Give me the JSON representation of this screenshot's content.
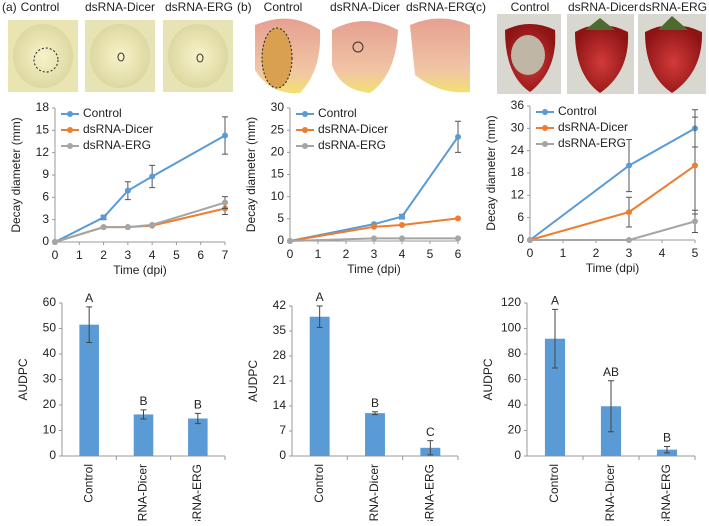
{
  "panels": [
    {
      "label": "(a)",
      "photo_labels": [
        "Control",
        "dsRNA-Dicer",
        "dsRNA-ERG"
      ]
    },
    {
      "label": "(b)",
      "photo_labels": [
        "Control",
        "dsRNA-Dicer",
        "dsRNA-ERG"
      ]
    },
    {
      "label": "(c)",
      "photo_labels": [
        "Control",
        "dsRNA-Dicer",
        "dsRNA-ERG"
      ]
    }
  ],
  "chart_data": [
    {
      "type": "line",
      "x_label": "Time (dpi)",
      "y_label": "Decay diameter (mm)",
      "x": [
        0,
        2,
        3,
        4,
        7
      ],
      "xlim": [
        0,
        7
      ],
      "xticks": [
        0,
        1,
        2,
        3,
        4,
        5,
        6,
        7
      ],
      "ylim": [
        0,
        18
      ],
      "yticks": [
        0,
        3,
        6,
        9,
        12,
        15,
        18
      ],
      "series": [
        {
          "name": "Control",
          "color": "#5b9bd5",
          "values": [
            0,
            3.3,
            6.9,
            8.8,
            14.3
          ],
          "errors": [
            null,
            0.3,
            1.2,
            1.5,
            2.5
          ]
        },
        {
          "name": "dsRNA-Dicer",
          "color": "#ed7d31",
          "values": [
            0,
            2,
            2,
            2.2,
            4.5
          ],
          "errors": [
            null,
            null,
            null,
            null,
            0.8
          ]
        },
        {
          "name": "dsRNA-ERG",
          "color": "#a5a5a5",
          "values": [
            0,
            2,
            2,
            2.3,
            5.3
          ],
          "errors": [
            null,
            null,
            null,
            null,
            0.8
          ]
        }
      ]
    },
    {
      "type": "line",
      "x_label": "Time (dpi)",
      "y_label": "Decay diameter (mm)",
      "x": [
        0,
        3,
        4,
        6
      ],
      "xlim": [
        0,
        6
      ],
      "xticks": [
        0,
        1,
        2,
        3,
        4,
        5,
        6
      ],
      "ylim": [
        0,
        30
      ],
      "yticks": [
        0,
        5,
        10,
        15,
        20,
        25,
        30
      ],
      "series": [
        {
          "name": "Control",
          "color": "#5b9bd5",
          "values": [
            0,
            3.8,
            5.5,
            23.5
          ],
          "errors": [
            null,
            null,
            0.5,
            3.5
          ]
        },
        {
          "name": "dsRNA-Dicer",
          "color": "#ed7d31",
          "values": [
            0,
            3.2,
            3.6,
            5.1
          ],
          "errors": [
            null,
            null,
            null,
            null
          ]
        },
        {
          "name": "dsRNA-ERG",
          "color": "#a5a5a5",
          "values": [
            0,
            0.6,
            0.6,
            0.6
          ],
          "errors": [
            null,
            null,
            null,
            null
          ]
        }
      ]
    },
    {
      "type": "line",
      "x_label": "Time (dpi)",
      "y_label": "Decay diameter (mm)",
      "x": [
        0,
        3,
        5
      ],
      "xlim": [
        0,
        5
      ],
      "xticks": [
        0,
        1,
        2,
        3,
        4,
        5
      ],
      "ylim": [
        0,
        36
      ],
      "yticks": [
        0,
        6,
        12,
        18,
        24,
        30,
        36
      ],
      "series": [
        {
          "name": "Control",
          "color": "#5b9bd5",
          "values": [
            0,
            20,
            30
          ],
          "errors": [
            null,
            7,
            5
          ]
        },
        {
          "name": "dsRNA-Dicer",
          "color": "#ed7d31",
          "values": [
            0,
            7.5,
            20
          ],
          "errors": [
            null,
            4,
            13
          ]
        },
        {
          "name": "dsRNA-ERG",
          "color": "#a5a5a5",
          "values": [
            0,
            0,
            5
          ],
          "errors": [
            null,
            null,
            3
          ]
        }
      ]
    },
    {
      "type": "bar",
      "y_label": "AUDPC",
      "categories": [
        "Control",
        "dsRNA-Dicer",
        "dsRNA-ERG"
      ],
      "values": [
        51.5,
        16.3,
        14.7
      ],
      "errors": [
        7,
        1.8,
        2
      ],
      "annotations": [
        "A",
        "B",
        "B"
      ],
      "color": "#5b9bd5",
      "ylim": [
        0,
        60
      ],
      "yticks": [
        0,
        10,
        20,
        30,
        40,
        50,
        60
      ]
    },
    {
      "type": "bar",
      "y_label": "AUDPC",
      "categories": [
        "Control",
        "dsRNA-Dicer",
        "dsRNA-ERG"
      ],
      "values": [
        39,
        12,
        2.3
      ],
      "errors": [
        3,
        0.4,
        2
      ],
      "annotations": [
        "A",
        "B",
        "C"
      ],
      "color": "#5b9bd5",
      "ylim": [
        0,
        42
      ],
      "yticks": [
        0,
        7,
        14,
        21,
        28,
        35,
        42
      ]
    },
    {
      "type": "bar",
      "y_label": "AUDPC",
      "categories": [
        "Control",
        "dsRNA-Dicer",
        "dsRNA-ERG"
      ],
      "values": [
        92,
        39,
        5
      ],
      "errors": [
        23,
        20,
        2.5
      ],
      "annotations": [
        "A",
        "AB",
        "B"
      ],
      "color": "#5b9bd5",
      "ylim": [
        0,
        120
      ],
      "yticks": [
        0,
        20,
        40,
        60,
        80,
        100,
        120
      ]
    }
  ]
}
